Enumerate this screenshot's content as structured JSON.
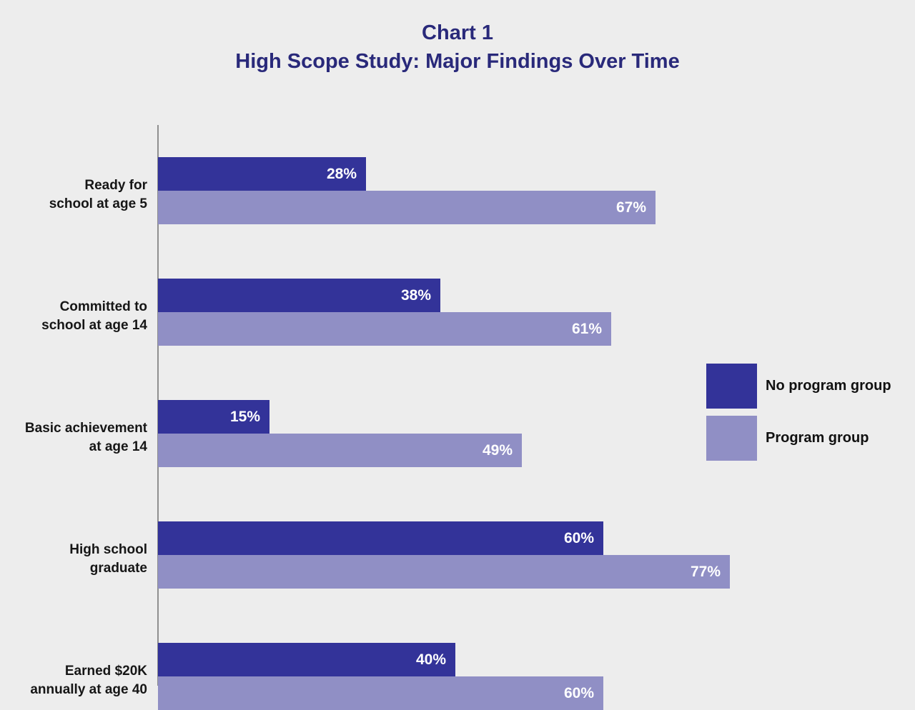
{
  "title": {
    "line1": "Chart 1",
    "line2": "High Scope Study: Major Findings Over Time"
  },
  "legend": [
    {
      "label": "No program group",
      "color": "#333399"
    },
    {
      "label": "Program group",
      "color": "#908fc5"
    }
  ],
  "colors": {
    "background": "#ededed",
    "title_text": "#29297a",
    "bar_value_text": "#ffffff",
    "category_label_text": "#161616",
    "axis_line": "#8f8f8f"
  },
  "chart_data": {
    "type": "bar",
    "orientation": "horizontal",
    "title": "Chart 1 — High Scope Study: Major Findings Over Time",
    "categories": [
      "Ready for\nschool at age 5",
      "Committed to\nschool at age 14",
      "Basic achievement\nat age 14",
      "High school\ngraduate",
      "Earned $20K\nannually at age 40"
    ],
    "series": [
      {
        "name": "No program group",
        "color": "#333399",
        "values": [
          28,
          38,
          15,
          60,
          40
        ]
      },
      {
        "name": "Program group",
        "color": "#908fc5",
        "values": [
          67,
          61,
          49,
          77,
          60
        ]
      }
    ],
    "value_suffix": "%",
    "xlim": [
      0,
      100
    ],
    "grid": false,
    "legend_position": "right",
    "note": "Last row (Program group 60%) is clipped by the bottom edge of the image"
  }
}
